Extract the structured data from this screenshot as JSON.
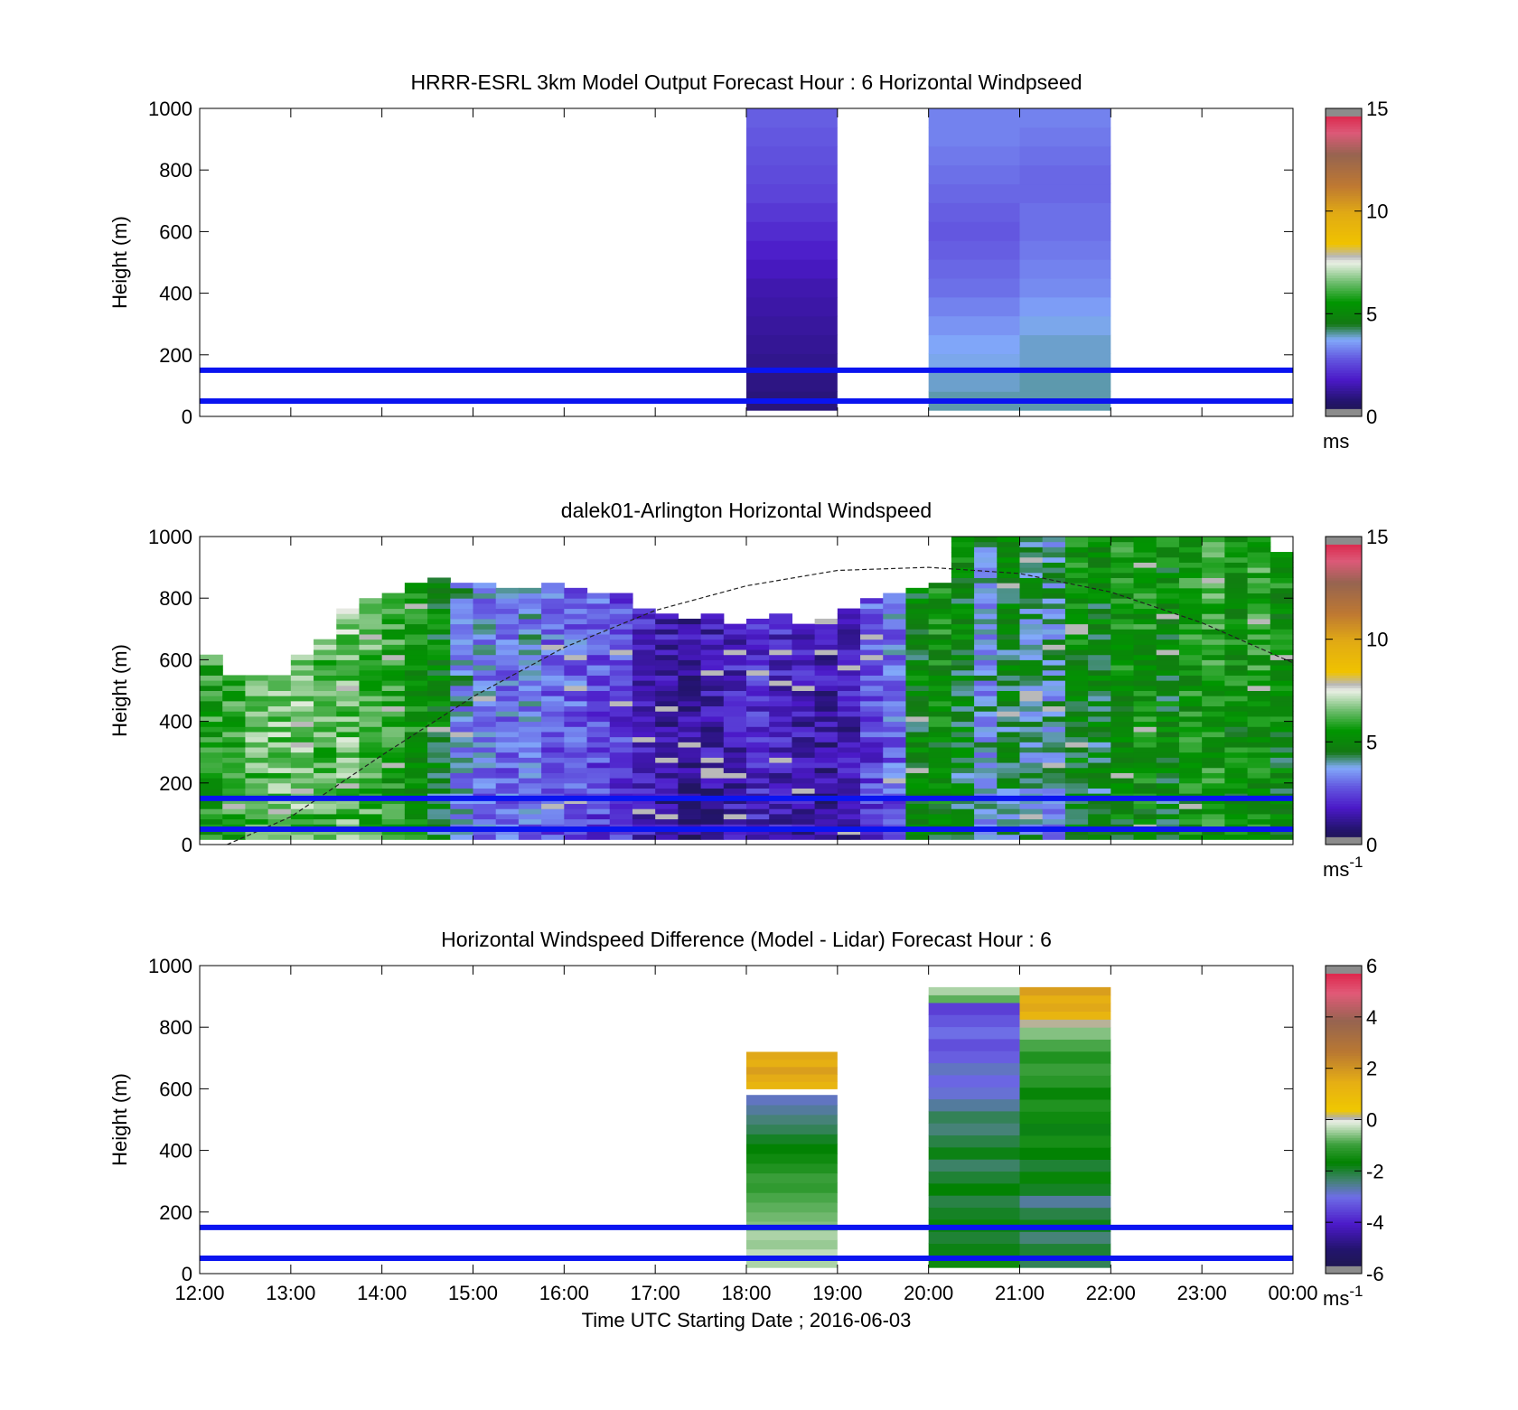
{
  "chart_data": [
    {
      "type": "heatmap",
      "title": "HRRR-ESRL 3km Model Output   Forecast Hour : 6 Horizontal Windpseed",
      "ylabel": "Height (m)",
      "xlabel": "",
      "xlim": [
        12,
        24
      ],
      "ylim": [
        0,
        1000
      ],
      "yticks": [
        0,
        200,
        400,
        600,
        800,
        1000
      ],
      "xticks": [
        "",
        "",
        "",
        "",
        "",
        "",
        "",
        "",
        "",
        "",
        "",
        "",
        ""
      ],
      "colorbar": {
        "min": 0,
        "max": 15,
        "ticks": [
          0,
          5,
          10,
          15
        ],
        "unit": "ms",
        "unit_sup": ""
      },
      "reference_lines_m": [
        50,
        150
      ],
      "columns": [
        {
          "x0": 18,
          "x1": 19,
          "z_bottom": 20,
          "z_top": 1000,
          "values": [
            0.9,
            1.0,
            1.1,
            1.2,
            1.3,
            1.4,
            1.5,
            1.7,
            1.9,
            2.1,
            2.3,
            2.5,
            2.6,
            2.7,
            2.8,
            2.9
          ]
        },
        {
          "x0": 20,
          "x1": 21,
          "z_bottom": 20,
          "z_top": 1000,
          "values": [
            4.0,
            3.9,
            3.8,
            3.7,
            3.5,
            3.3,
            3.1,
            3.0,
            2.9,
            2.8,
            2.9,
            3.0,
            3.1,
            3.2,
            3.3,
            3.3
          ]
        },
        {
          "x0": 21,
          "x1": 22,
          "z_bottom": 20,
          "z_top": 1000,
          "values": [
            4.0,
            4.0,
            3.9,
            3.9,
            3.8,
            3.6,
            3.4,
            3.3,
            3.2,
            3.1,
            3.1,
            3.0,
            3.0,
            3.1,
            3.2,
            3.3
          ]
        }
      ]
    },
    {
      "type": "heatmap",
      "title": "dalek01-Arlington  Horizontal Windspeed",
      "ylabel": "Height (m)",
      "xlabel": "",
      "xlim": [
        12,
        24
      ],
      "ylim": [
        0,
        1000
      ],
      "yticks": [
        0,
        200,
        400,
        600,
        800,
        1000
      ],
      "xticks": [
        "",
        "",
        "",
        "",
        "",
        "",
        "",
        "",
        "",
        "",
        "",
        "",
        ""
      ],
      "colorbar": {
        "min": 0,
        "max": 15,
        "ticks": [
          0,
          5,
          10,
          15
        ],
        "unit": "ms",
        "unit_sup": "-1"
      },
      "reference_lines_m": [
        50,
        150
      ],
      "boundary_layer_curve": {
        "x": [
          12.3,
          13,
          14,
          15,
          16,
          17,
          18,
          19,
          20,
          21,
          22,
          23,
          24
        ],
        "y": [
          0,
          90,
          290,
          480,
          640,
          760,
          840,
          890,
          900,
          880,
          820,
          720,
          590
        ]
      },
      "column_profiles": [
        {
          "x0": 12.0,
          "top": 620,
          "base": 5.6
        },
        {
          "x0": 12.25,
          "top": 560,
          "base": 5.9
        },
        {
          "x0": 12.5,
          "top": 560,
          "base": 6.2
        },
        {
          "x0": 12.75,
          "top": 560,
          "base": 6.3
        },
        {
          "x0": 13.0,
          "top": 620,
          "base": 6.4
        },
        {
          "x0": 13.25,
          "top": 680,
          "base": 6.0
        },
        {
          "x0": 13.5,
          "top": 780,
          "base": 6.3
        },
        {
          "x0": 13.75,
          "top": 810,
          "base": 6.0
        },
        {
          "x0": 14.0,
          "top": 830,
          "base": 5.6
        },
        {
          "x0": 14.25,
          "top": 860,
          "base": 5.2
        },
        {
          "x0": 14.5,
          "top": 870,
          "base": 4.6
        },
        {
          "x0": 14.75,
          "top": 860,
          "base": 3.4
        },
        {
          "x0": 15.0,
          "top": 850,
          "base": 3.0
        },
        {
          "x0": 15.25,
          "top": 840,
          "base": 2.9
        },
        {
          "x0": 15.5,
          "top": 840,
          "base": 3.1
        },
        {
          "x0": 15.75,
          "top": 850,
          "base": 2.7
        },
        {
          "x0": 16.0,
          "top": 840,
          "base": 2.6
        },
        {
          "x0": 16.25,
          "top": 820,
          "base": 2.4
        },
        {
          "x0": 16.5,
          "top": 820,
          "base": 2.2
        },
        {
          "x0": 16.75,
          "top": 780,
          "base": 1.6
        },
        {
          "x0": 17.0,
          "top": 760,
          "base": 1.2
        },
        {
          "x0": 17.25,
          "top": 740,
          "base": 1.0
        },
        {
          "x0": 17.5,
          "top": 760,
          "base": 1.3
        },
        {
          "x0": 17.75,
          "top": 720,
          "base": 1.5
        },
        {
          "x0": 18.0,
          "top": 740,
          "base": 1.8
        },
        {
          "x0": 18.25,
          "top": 760,
          "base": 1.6
        },
        {
          "x0": 18.5,
          "top": 730,
          "base": 1.4
        },
        {
          "x0": 18.75,
          "top": 740,
          "base": 1.2
        },
        {
          "x0": 19.0,
          "top": 780,
          "base": 1.4
        },
        {
          "x0": 19.25,
          "top": 800,
          "base": 2.3
        },
        {
          "x0": 19.5,
          "top": 820,
          "base": 2.8
        },
        {
          "x0": 19.75,
          "top": 840,
          "base": 4.6
        },
        {
          "x0": 20.0,
          "top": 860,
          "base": 5.0
        },
        {
          "x0": 20.25,
          "top": 1000,
          "base": 4.5
        },
        {
          "x0": 20.5,
          "top": 1000,
          "base": 3.4
        },
        {
          "x0": 20.75,
          "top": 1000,
          "base": 4.3
        },
        {
          "x0": 21.0,
          "top": 1000,
          "base": 3.9
        },
        {
          "x0": 21.25,
          "top": 1000,
          "base": 3.6
        },
        {
          "x0": 21.5,
          "top": 1000,
          "base": 4.8
        },
        {
          "x0": 21.75,
          "top": 1000,
          "base": 4.4
        },
        {
          "x0": 22.0,
          "top": 1000,
          "base": 4.9
        },
        {
          "x0": 22.25,
          "top": 1000,
          "base": 5.1
        },
        {
          "x0": 22.5,
          "top": 1000,
          "base": 4.6
        },
        {
          "x0": 22.75,
          "top": 1000,
          "base": 5.2
        },
        {
          "x0": 23.0,
          "top": 1000,
          "base": 5.5
        },
        {
          "x0": 23.25,
          "top": 1000,
          "base": 5.0
        },
        {
          "x0": 23.5,
          "top": 1000,
          "base": 5.3
        },
        {
          "x0": 23.75,
          "top": 960,
          "base": 4.8
        }
      ]
    },
    {
      "type": "heatmap",
      "title": "Horizontal Windspeed Difference (Model - Lidar) Forecast Hour : 6",
      "ylabel": "Height (m)",
      "xlabel": "Time UTC  Starting Date ; 2016-06-03",
      "xlim": [
        12,
        24
      ],
      "ylim": [
        0,
        1000
      ],
      "yticks": [
        0,
        200,
        400,
        600,
        800,
        1000
      ],
      "xticks": [
        "12:00",
        "13:00",
        "14:00",
        "15:00",
        "16:00",
        "17:00",
        "18:00",
        "19:00",
        "20:00",
        "21:00",
        "22:00",
        "23:00",
        "00:00"
      ],
      "colorbar": {
        "min": -6,
        "max": 6,
        "ticks": [
          -6,
          -4,
          -2,
          0,
          2,
          4,
          6
        ],
        "unit": "ms",
        "unit_sup": "-1"
      },
      "reference_lines_m": [
        50,
        150
      ],
      "columns": [
        {
          "x0": 18,
          "x1": 19,
          "segments": [
            {
              "z0": 20,
              "z1": 200,
              "values": [
                -0.4,
                -0.3,
                -0.5,
                -0.4,
                -0.6,
                -0.7
              ]
            },
            {
              "z0": 200,
              "z1": 580,
              "values": [
                -0.8,
                -0.9,
                -1.1,
                -1.0,
                -1.3,
                -1.5,
                -1.7,
                -1.9,
                -2.2,
                -2.4,
                -2.6,
                -2.8
              ]
            },
            {
              "z0": 600,
              "z1": 720,
              "values": [
                1.2,
                1.5,
                1.8,
                1.4,
                1.6
              ]
            }
          ]
        },
        {
          "x0": 20,
          "x1": 21,
          "segments": [
            {
              "z0": 20,
              "z1": 880,
              "values": [
                -1.5,
                -1.8,
                -2.0,
                -1.6,
                -1.9,
                -2.1,
                -1.7,
                -2.0,
                -2.3,
                -1.8,
                -2.1,
                -2.4,
                -2.2,
                -2.6,
                -2.9,
                -3.1,
                -2.8,
                -3.2,
                -3.4,
                -3.0,
                -3.3,
                -3.6
              ]
            },
            {
              "z0": 880,
              "z1": 930,
              "values": [
                -0.8,
                -0.4
              ]
            }
          ]
        },
        {
          "x0": 21,
          "x1": 22,
          "segments": [
            {
              "z0": 20,
              "z1": 800,
              "values": [
                -2.2,
                -2.0,
                -2.4,
                -1.8,
                -2.1,
                -2.6,
                -1.9,
                -1.6,
                -2.0,
                -1.7,
                -1.4,
                -1.8,
                -1.5,
                -1.3,
                -1.6,
                -1.2,
                -1.0,
                -1.3,
                -0.9,
                -0.6
              ]
            },
            {
              "z0": 800,
              "z1": 930,
              "values": [
                0.1,
                1.2,
                1.6,
                1.4,
                1.8
              ]
            }
          ]
        }
      ]
    }
  ]
}
